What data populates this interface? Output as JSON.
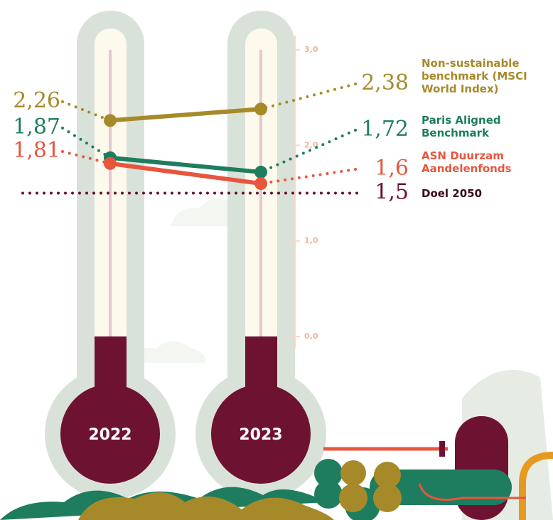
{
  "chart_data": {
    "type": "line",
    "categories": [
      "2022",
      "2023"
    ],
    "series": [
      {
        "name": "Non-sustainable benchmark (MSCI World Index)",
        "color": "#a68a2a",
        "values": [
          2.26,
          2.38
        ],
        "value_labels": [
          "2,26",
          "2,38"
        ]
      },
      {
        "name": "Paris Aligned Benchmark",
        "color": "#1e7d5e",
        "values": [
          1.87,
          1.72
        ],
        "value_labels": [
          "1,87",
          "1,72"
        ]
      },
      {
        "name": "ASN Duurzam Aandelenfonds",
        "color": "#e8553d",
        "values": [
          1.81,
          1.6
        ],
        "value_labels": [
          "1,81",
          "1,6"
        ]
      }
    ],
    "target": {
      "name": "Doel 2050",
      "color": "#6b0f2e",
      "value": 1.5,
      "value_label": "1,5"
    },
    "ylim": [
      0,
      3
    ],
    "yticks": [
      {
        "value": 0,
        "label": "0,0"
      },
      {
        "value": 1,
        "label": "1,0"
      },
      {
        "value": 2,
        "label": "2,0"
      },
      {
        "value": 3,
        "label": "3,0"
      }
    ]
  }
}
